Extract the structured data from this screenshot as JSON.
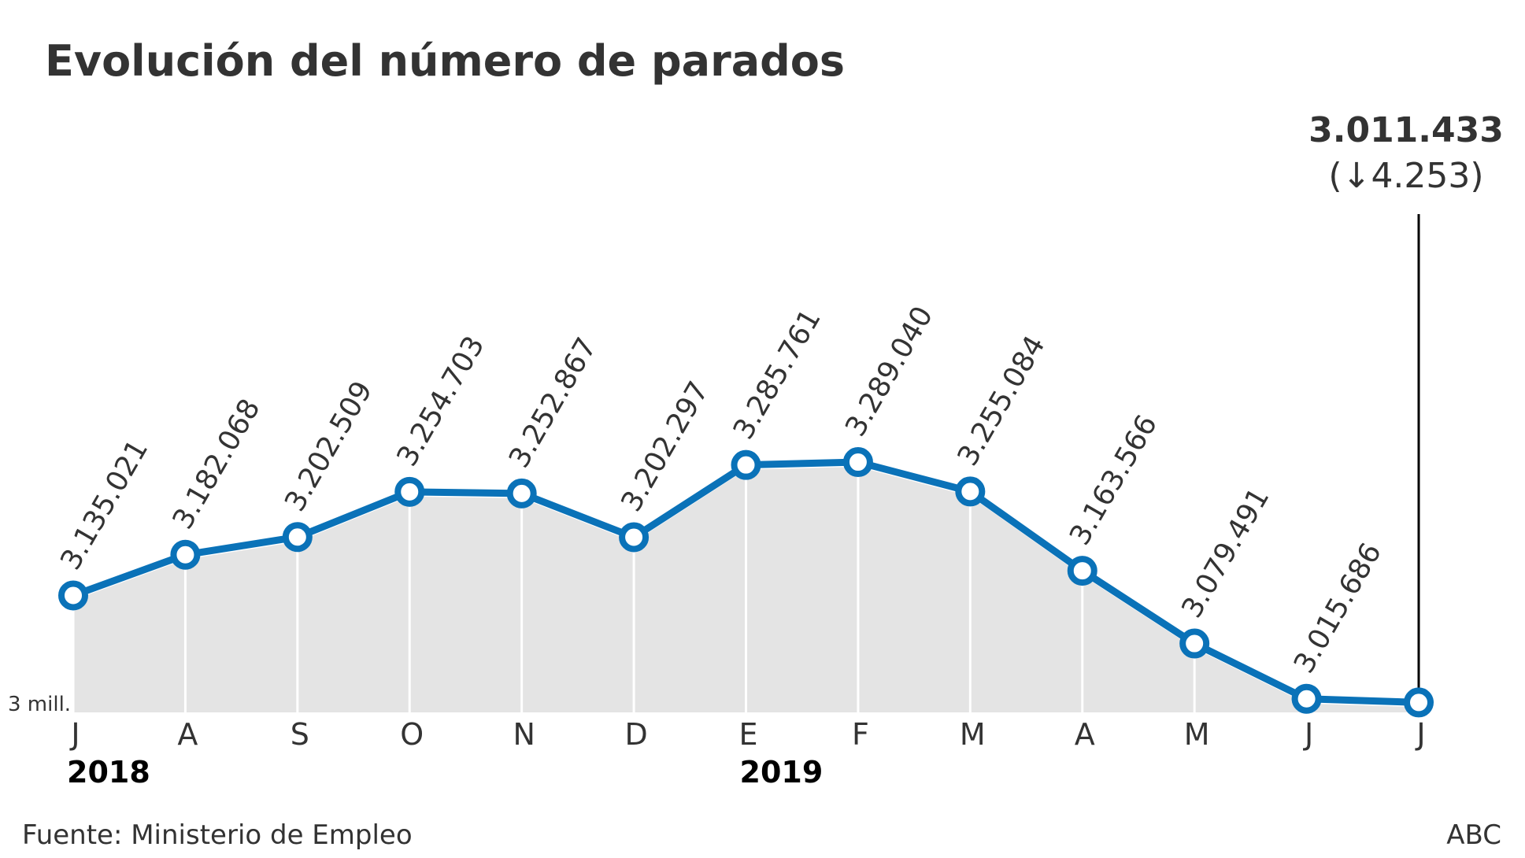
{
  "chart_data": {
    "type": "area",
    "title": "Evolución del número de parados",
    "categories": [
      "J",
      "A",
      "S",
      "O",
      "N",
      "D",
      "E",
      "F",
      "M",
      "A",
      "M",
      "J",
      "J"
    ],
    "years": [
      {
        "label": "2018",
        "index": 0
      },
      {
        "label": "2019",
        "index": 6
      }
    ],
    "values": [
      3135021,
      3182068,
      3202509,
      3254703,
      3252867,
      3202297,
      3285761,
      3289040,
      3255084,
      3163566,
      3079491,
      3015686,
      3011433
    ],
    "value_labels": [
      "3.135.021",
      "3.182.068",
      "3.202.509",
      "3.254.703",
      "3.252.867",
      "3.202.297",
      "3.285.761",
      "3.289.040",
      "3.255.084",
      "3.163.566",
      "3.079.491",
      "3.015.686",
      "3.011.433"
    ],
    "last_value_label": "3.011.433",
    "last_change_label": "(↓4.253)",
    "ymin_label": "3 mill.",
    "ylim": [
      3000000,
      3800000
    ],
    "grid": "vertical",
    "source": "Fuente: Ministerio de Empleo",
    "credit": "ABC",
    "colors": {
      "line": "#0a72b8",
      "area": "#e4e4e4",
      "grid": "#ffffff",
      "text": "#333333"
    }
  }
}
